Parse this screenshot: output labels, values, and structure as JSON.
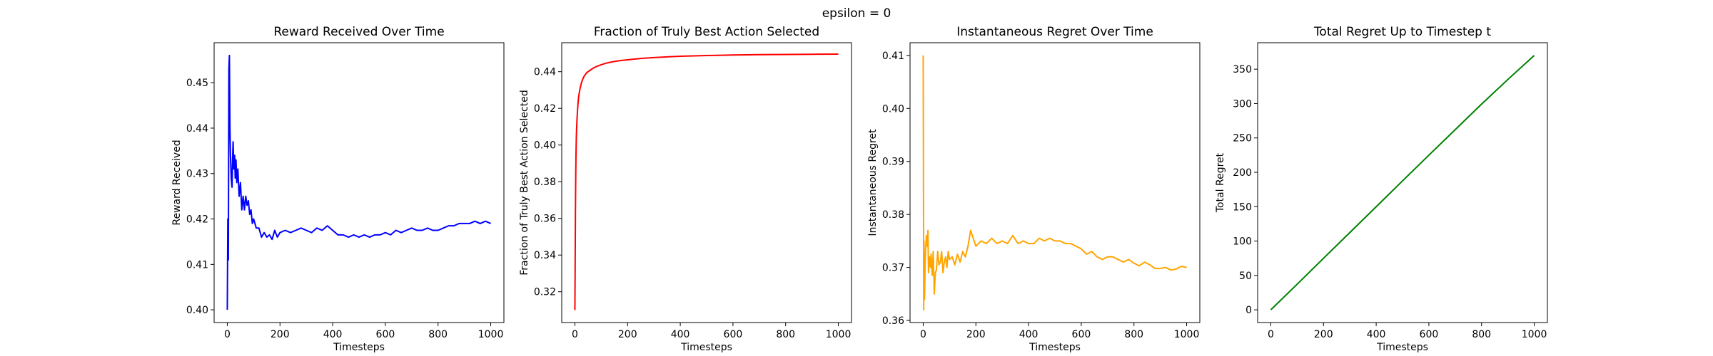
{
  "figure": {
    "suptitle": "epsilon = 0"
  },
  "chart_data": [
    {
      "type": "line",
      "title": "Reward Received Over Time",
      "xlabel": "Timesteps",
      "ylabel": "Reward Received",
      "xlim": [
        -50,
        1050
      ],
      "ylim": [
        0.3972,
        0.4588
      ],
      "xticks": [
        0,
        200,
        400,
        600,
        800,
        1000
      ],
      "yticks": [
        0.4,
        0.41,
        0.42,
        0.43,
        0.44,
        0.45
      ],
      "ytick_labels": [
        "0.40",
        "0.41",
        "0.42",
        "0.43",
        "0.44",
        "0.45"
      ],
      "grid": false,
      "color": "#0000ff",
      "series": [
        {
          "x": [
            0,
            2,
            4,
            6,
            8,
            10,
            12,
            15,
            18,
            20,
            22,
            25,
            28,
            30,
            33,
            36,
            40,
            45,
            50,
            55,
            60,
            65,
            70,
            75,
            80,
            85,
            90,
            95,
            100,
            110,
            120,
            130,
            140,
            150,
            160,
            170,
            180,
            190,
            200,
            220,
            240,
            260,
            280,
            300,
            320,
            340,
            360,
            380,
            400,
            420,
            440,
            460,
            480,
            500,
            520,
            540,
            560,
            580,
            600,
            620,
            640,
            660,
            680,
            700,
            720,
            740,
            760,
            780,
            800,
            820,
            840,
            860,
            880,
            900,
            920,
            940,
            960,
            980,
            1000
          ],
          "y": [
            0.4,
            0.42,
            0.411,
            0.453,
            0.456,
            0.44,
            0.434,
            0.429,
            0.427,
            0.433,
            0.437,
            0.431,
            0.434,
            0.429,
            0.433,
            0.428,
            0.431,
            0.425,
            0.428,
            0.422,
            0.425,
            0.422,
            0.425,
            0.423,
            0.424,
            0.421,
            0.422,
            0.419,
            0.42,
            0.418,
            0.418,
            0.416,
            0.417,
            0.416,
            0.4165,
            0.4155,
            0.4175,
            0.416,
            0.417,
            0.4175,
            0.417,
            0.4175,
            0.418,
            0.4175,
            0.417,
            0.418,
            0.4175,
            0.4185,
            0.4175,
            0.4165,
            0.4165,
            0.416,
            0.4165,
            0.416,
            0.4165,
            0.416,
            0.4165,
            0.4165,
            0.417,
            0.4165,
            0.4175,
            0.417,
            0.4175,
            0.418,
            0.4175,
            0.4175,
            0.418,
            0.4175,
            0.4175,
            0.418,
            0.4185,
            0.4185,
            0.419,
            0.419,
            0.419,
            0.4195,
            0.419,
            0.4195,
            0.419
          ]
        }
      ]
    },
    {
      "type": "line",
      "title": "Fraction of Truly Best Action Selected",
      "xlabel": "Timesteps",
      "ylabel": "Fraction of Truly Best Action Selected",
      "xlim": [
        -50,
        1050
      ],
      "ylim": [
        0.3032,
        0.4558
      ],
      "xticks": [
        0,
        200,
        400,
        600,
        800,
        1000
      ],
      "yticks": [
        0.32,
        0.34,
        0.36,
        0.38,
        0.4,
        0.42,
        0.44
      ],
      "ytick_labels": [
        "0.32",
        "0.34",
        "0.36",
        "0.38",
        "0.40",
        "0.42",
        "0.44"
      ],
      "grid": false,
      "color": "#ff0000",
      "series": [
        {
          "x": [
            0,
            1,
            2,
            3,
            4,
            5,
            6,
            8,
            10,
            12,
            14,
            16,
            18,
            20,
            25,
            30,
            35,
            40,
            45,
            50,
            60,
            70,
            80,
            90,
            100,
            120,
            140,
            160,
            180,
            200,
            250,
            300,
            350,
            400,
            450,
            500,
            600,
            700,
            800,
            900,
            1000
          ],
          "y": [
            0.31,
            0.334,
            0.362,
            0.38,
            0.393,
            0.401,
            0.407,
            0.414,
            0.419,
            0.423,
            0.426,
            0.428,
            0.4295,
            0.431,
            0.434,
            0.436,
            0.4375,
            0.4385,
            0.4395,
            0.44,
            0.441,
            0.442,
            0.4427,
            0.4433,
            0.4438,
            0.4447,
            0.4453,
            0.4458,
            0.4462,
            0.4465,
            0.4472,
            0.4477,
            0.4481,
            0.4484,
            0.4486,
            0.4488,
            0.4491,
            0.4493,
            0.4494,
            0.4495,
            0.4496
          ]
        }
      ]
    },
    {
      "type": "line",
      "title": "Instantaneous Regret Over Time",
      "xlabel": "Timesteps",
      "ylabel": "Instantaneous Regret",
      "xlim": [
        -50,
        1050
      ],
      "ylim": [
        0.3596,
        0.4124
      ],
      "xticks": [
        0,
        200,
        400,
        600,
        800,
        1000
      ],
      "yticks": [
        0.36,
        0.37,
        0.38,
        0.39,
        0.4,
        0.41
      ],
      "ytick_labels": [
        "0.36",
        "0.37",
        "0.38",
        "0.39",
        "0.40",
        "0.41"
      ],
      "grid": false,
      "color": "#ffa500",
      "series": [
        {
          "x": [
            0,
            2,
            3,
            5,
            7,
            9,
            12,
            15,
            18,
            20,
            24,
            28,
            30,
            34,
            38,
            42,
            46,
            50,
            55,
            60,
            65,
            70,
            75,
            80,
            85,
            90,
            95,
            100,
            110,
            120,
            130,
            140,
            150,
            160,
            170,
            180,
            190,
            200,
            220,
            240,
            260,
            280,
            300,
            320,
            340,
            360,
            380,
            400,
            420,
            440,
            460,
            480,
            500,
            520,
            540,
            560,
            580,
            600,
            620,
            640,
            660,
            680,
            700,
            720,
            740,
            760,
            780,
            800,
            820,
            840,
            860,
            880,
            900,
            920,
            940,
            960,
            980,
            1000
          ],
          "y": [
            0.41,
            0.362,
            0.375,
            0.364,
            0.37,
            0.373,
            0.376,
            0.374,
            0.377,
            0.369,
            0.372,
            0.37,
            0.3725,
            0.3685,
            0.373,
            0.365,
            0.369,
            0.3695,
            0.373,
            0.3705,
            0.371,
            0.373,
            0.369,
            0.371,
            0.372,
            0.37,
            0.373,
            0.3715,
            0.372,
            0.3705,
            0.3725,
            0.371,
            0.373,
            0.372,
            0.374,
            0.377,
            0.3755,
            0.374,
            0.375,
            0.3745,
            0.3755,
            0.3745,
            0.375,
            0.3745,
            0.376,
            0.3745,
            0.375,
            0.3745,
            0.3745,
            0.3755,
            0.375,
            0.3755,
            0.375,
            0.375,
            0.3745,
            0.3745,
            0.374,
            0.3735,
            0.3725,
            0.373,
            0.372,
            0.3715,
            0.372,
            0.372,
            0.3715,
            0.371,
            0.3715,
            0.3708,
            0.3703,
            0.371,
            0.3705,
            0.3698,
            0.3698,
            0.37,
            0.3695,
            0.3697,
            0.3702,
            0.37
          ]
        }
      ]
    },
    {
      "type": "line",
      "title": "Total Regret Up to Timestep t",
      "xlabel": "Timesteps",
      "ylabel": "Total Regret",
      "xlim": [
        -50,
        1050
      ],
      "ylim": [
        -18.5,
        388.5
      ],
      "xticks": [
        0,
        200,
        400,
        600,
        800,
        1000
      ],
      "yticks": [
        0,
        50,
        100,
        150,
        200,
        250,
        300,
        350
      ],
      "ytick_labels": [
        "0",
        "50",
        "100",
        "150",
        "200",
        "250",
        "300",
        "350"
      ],
      "grid": false,
      "color": "#008000",
      "series": [
        {
          "x": [
            0,
            100,
            200,
            300,
            400,
            500,
            600,
            700,
            800,
            900,
            1000
          ],
          "y": [
            0,
            37.2,
            74.9,
            112.4,
            149.9,
            187.5,
            224.9,
            262.0,
            299.2,
            335.1,
            370
          ]
        }
      ]
    }
  ]
}
